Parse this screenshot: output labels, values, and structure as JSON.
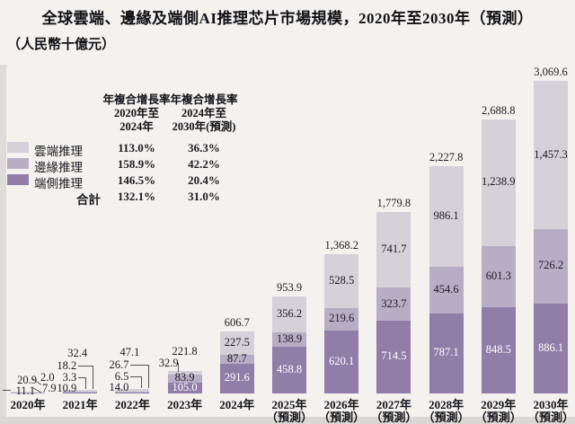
{
  "title": "全球雲端、邊緣及端側AI推理芯片市場規模，2020年至2030年（預測）",
  "unit_label": "（人民幣十億元）",
  "cagr_table": {
    "col1_header": [
      "年複合增長率",
      "2020年至",
      "2024年"
    ],
    "col2_header": [
      "年複合增長率",
      "2024年至",
      "2030年(預測)"
    ],
    "rows": [
      {
        "label": "雲端推理",
        "cagr_2020_2024": "113.0%",
        "cagr_2024_2030": "36.3%"
      },
      {
        "label": "邊緣推理",
        "cagr_2020_2024": "158.9%",
        "cagr_2024_2030": "42.2%"
      },
      {
        "label": "端側推理",
        "cagr_2020_2024": "146.5%",
        "cagr_2024_2030": "20.4%"
      }
    ],
    "total_row": {
      "label": "合計",
      "cagr_2020_2024": "132.1%",
      "cagr_2024_2030": "31.0%"
    }
  },
  "colors": {
    "cloud": "#d4d1d8",
    "edge": "#b7aec5",
    "endpoint": "#907da8",
    "background": "#f4f2ef",
    "label_dark": "#1c1b22",
    "label_light": "#ffffff"
  },
  "chart_data": {
    "type": "bar",
    "stacked": true,
    "title": "全球雲端、邊緣及端側AI推理芯片市場規模，2020年至2030年（預測）",
    "ylabel": "人民幣十億元",
    "grid": false,
    "legend_position": "left",
    "categories": [
      "2020年",
      "2021年",
      "2022年",
      "2023年",
      "2024年",
      "2025年（預測）",
      "2026年（預測）",
      "2027年（預測）",
      "2028年（預測）",
      "2029年（預測）",
      "2030年（預測）"
    ],
    "x_labels": [
      {
        "year": "2020年",
        "note": ""
      },
      {
        "year": "2021年",
        "note": ""
      },
      {
        "year": "2022年",
        "note": ""
      },
      {
        "year": "2023年",
        "note": ""
      },
      {
        "year": "2024年",
        "note": ""
      },
      {
        "year": "2025年",
        "note": "（預測）"
      },
      {
        "year": "2026年",
        "note": "（預測）"
      },
      {
        "year": "2027年",
        "note": "（預測）"
      },
      {
        "year": "2028年",
        "note": "（預測）"
      },
      {
        "year": "2029年",
        "note": "（預測）"
      },
      {
        "year": "2030年",
        "note": "（預測）"
      }
    ],
    "series": [
      {
        "name": "雲端推理",
        "stack_position": "top",
        "values": [
          11.1,
          18.2,
          26.7,
          32.9,
          227.5,
          356.2,
          528.5,
          741.7,
          986.1,
          1238.9,
          1457.3
        ],
        "labels": [
          "11.1",
          "18.2",
          "26.7",
          "32.9",
          "227.5",
          "356.2",
          "528.5",
          "741.7",
          "986.1",
          "1,238.9",
          "1,457.3"
        ]
      },
      {
        "name": "邊緣推理",
        "stack_position": "middle",
        "values": [
          2.0,
          3.3,
          6.5,
          83.9,
          87.7,
          138.9,
          219.6,
          323.7,
          454.6,
          601.3,
          726.2
        ],
        "labels": [
          "2.0",
          "3.3",
          "6.5",
          "83.9",
          "87.7",
          "138.9",
          "219.6",
          "323.7",
          "454.6",
          "601.3",
          "726.2"
        ]
      },
      {
        "name": "端側推理",
        "stack_position": "bottom",
        "values": [
          7.9,
          10.9,
          14.0,
          105.0,
          291.6,
          458.8,
          620.1,
          714.5,
          787.1,
          848.5,
          886.1
        ],
        "labels": [
          "7.9",
          "10.9",
          "14.0",
          "105.0",
          "291.6",
          "458.8",
          "620.1",
          "714.5",
          "787.1",
          "848.5",
          "886.1"
        ]
      }
    ],
    "totals": [
      20.9,
      32.4,
      47.1,
      221.8,
      606.7,
      953.9,
      1368.2,
      1779.8,
      2227.8,
      2688.8,
      3069.6
    ],
    "total_labels": [
      "20.9",
      "32.4",
      "47.1",
      "221.8",
      "606.7",
      "953.9",
      "1,368.2",
      "1,779.8",
      "2,227.8",
      "2,688.8",
      "3,069.6"
    ],
    "ylim": [
      0,
      3200
    ]
  }
}
